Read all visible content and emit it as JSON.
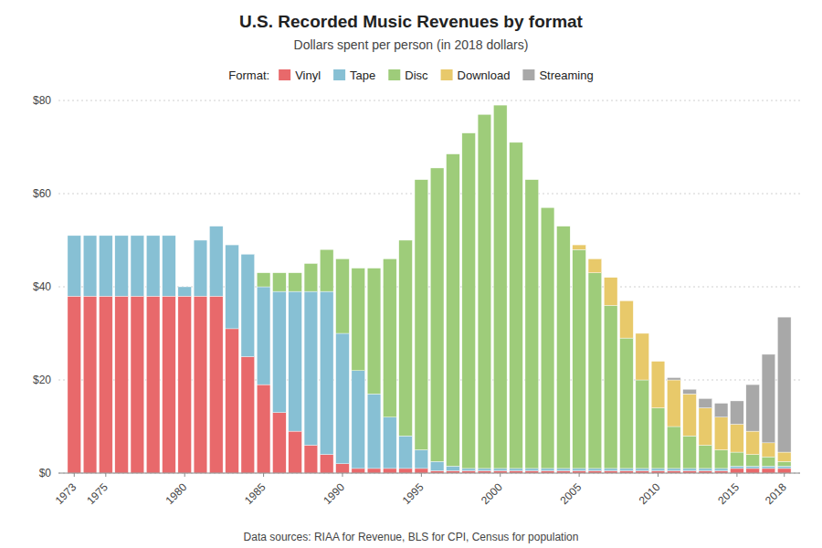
{
  "chart_data": {
    "type": "bar",
    "stacked": true,
    "title": "U.S. Recorded Music Revenues by format",
    "subtitle": "Dollars spent per person (in 2018 dollars)",
    "footer": "Data sources: RIAA for Revenue, BLS for CPI, Census for population",
    "legend_title": "Format:",
    "legend": "top",
    "grid": true,
    "x": [
      1973,
      1974,
      1975,
      1976,
      1977,
      1978,
      1979,
      1980,
      1981,
      1982,
      1983,
      1984,
      1985,
      1986,
      1987,
      1988,
      1989,
      1990,
      1991,
      1992,
      1993,
      1994,
      1995,
      1996,
      1997,
      1998,
      1999,
      2000,
      2001,
      2002,
      2003,
      2004,
      2005,
      2006,
      2007,
      2008,
      2009,
      2010,
      2011,
      2012,
      2013,
      2014,
      2015,
      2016,
      2017,
      2018
    ],
    "xlim": [
      1972,
      2019
    ],
    "xticks": [
      1973,
      1975,
      1980,
      1985,
      1990,
      1995,
      2000,
      2005,
      2010,
      2015,
      2018
    ],
    "ylim": [
      0,
      80
    ],
    "yticks": [
      {
        "value": 0,
        "label": "$0"
      },
      {
        "value": 20,
        "label": "$20"
      },
      {
        "value": 40,
        "label": "$40"
      },
      {
        "value": 60,
        "label": "$60"
      },
      {
        "value": 80,
        "label": "$80"
      }
    ],
    "series": [
      {
        "name": "Vinyl",
        "color": "#e8696b",
        "values": [
          38,
          38,
          38,
          38,
          38,
          38,
          38,
          38,
          38,
          38,
          31,
          25,
          19,
          13,
          9,
          6,
          4,
          2,
          1,
          1,
          1,
          1,
          1,
          0.5,
          0.5,
          0.5,
          0.5,
          0.5,
          0.5,
          0.5,
          0.5,
          0.5,
          0.5,
          0.5,
          0.5,
          0.5,
          0.5,
          0.5,
          0.5,
          0.5,
          0.5,
          0.5,
          1,
          1,
          1,
          1
        ]
      },
      {
        "name": "Tape",
        "color": "#87c0d4",
        "values": [
          13,
          13,
          13,
          13,
          13,
          13,
          13,
          2,
          12,
          15,
          18,
          22,
          21,
          26,
          30,
          33,
          35,
          28,
          21,
          16,
          11,
          7,
          4,
          2,
          1,
          0.5,
          0.5,
          0.5,
          0.5,
          0.5,
          0.5,
          0.5,
          0.5,
          0.5,
          0.5,
          0.5,
          0.5,
          0.5,
          0.5,
          0.5,
          0.5,
          0.5,
          0.5,
          0.5,
          0.5,
          0.5
        ]
      },
      {
        "name": "Disc",
        "color": "#9ecc7a",
        "values": [
          0,
          0,
          0,
          0,
          0,
          0,
          0,
          0,
          0,
          0,
          0,
          0,
          3,
          4,
          4,
          6,
          9,
          16,
          22,
          27,
          34,
          42,
          58,
          63,
          67,
          72,
          76,
          78,
          70,
          62,
          56,
          52,
          47,
          42,
          35,
          28,
          19,
          13,
          9,
          7,
          5,
          4,
          3,
          2.5,
          2,
          1
        ]
      },
      {
        "name": "Download",
        "color": "#e8c96a",
        "values": [
          0,
          0,
          0,
          0,
          0,
          0,
          0,
          0,
          0,
          0,
          0,
          0,
          0,
          0,
          0,
          0,
          0,
          0,
          0,
          0,
          0,
          0,
          0,
          0,
          0,
          0,
          0,
          0,
          0,
          0,
          0,
          0,
          1,
          3,
          6,
          8,
          10,
          10,
          10,
          9,
          8,
          7,
          6,
          5,
          3,
          2
        ]
      },
      {
        "name": "Streaming",
        "color": "#a8a8a8",
        "values": [
          0,
          0,
          0,
          0,
          0,
          0,
          0,
          0,
          0,
          0,
          0,
          0,
          0,
          0,
          0,
          0,
          0,
          0,
          0,
          0,
          0,
          0,
          0,
          0,
          0,
          0,
          0,
          0,
          0,
          0,
          0,
          0,
          0,
          0,
          0,
          0,
          0,
          0,
          0.5,
          1,
          2,
          3,
          5,
          10,
          19,
          29
        ]
      }
    ]
  }
}
